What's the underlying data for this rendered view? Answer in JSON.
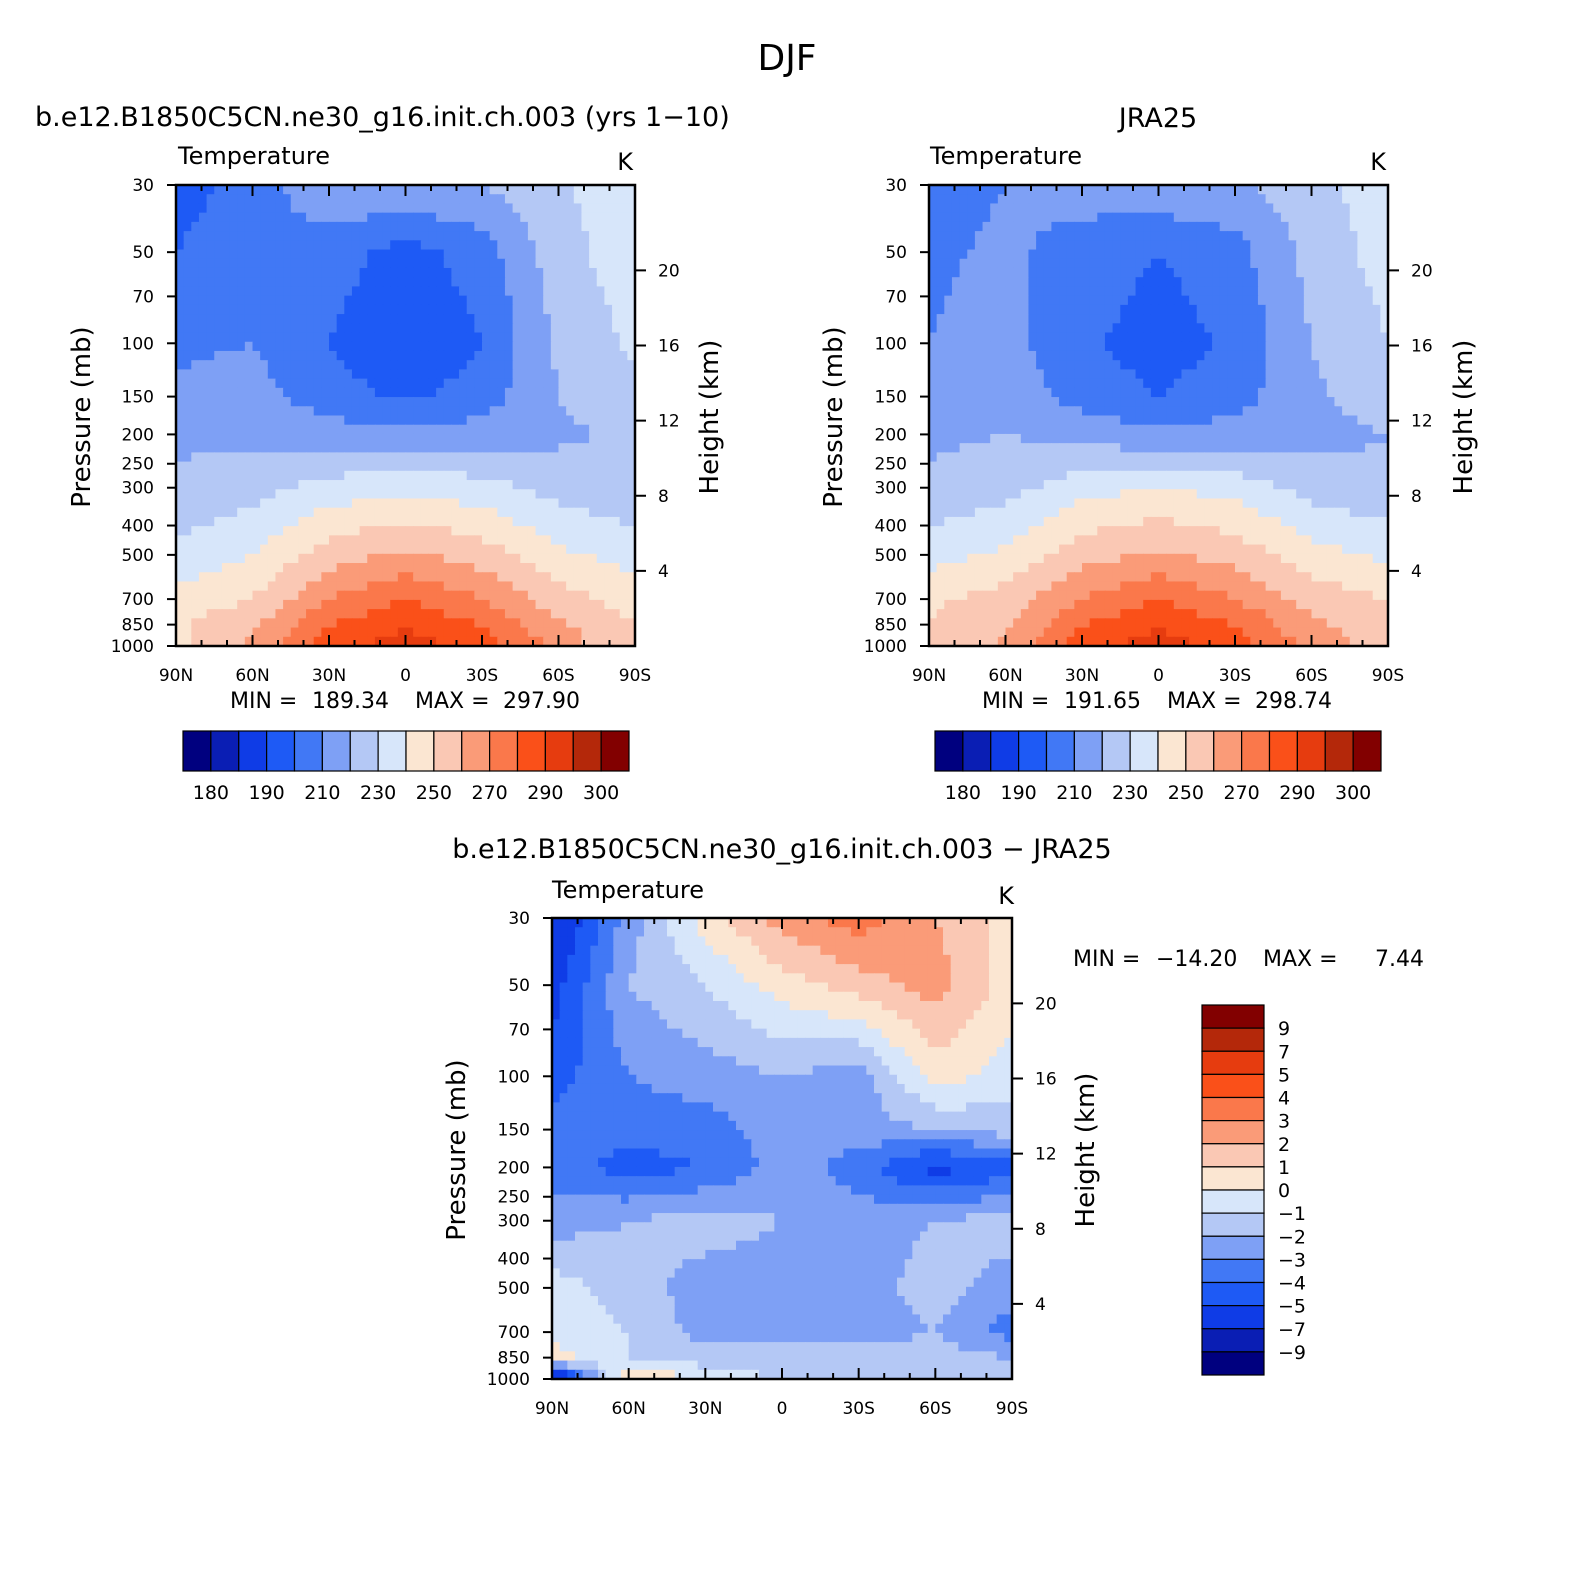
{
  "figure_title": "DJF",
  "colors": {
    "temperature_levels": [
      "#00007f",
      "#0a1eb4",
      "#0f3ce6",
      "#1e5af5",
      "#4178f5",
      "#7ea0f5",
      "#b4c8f5",
      "#d7e6fa",
      "#fbe6d2",
      "#fac8b4",
      "#fa9b78",
      "#fa784b",
      "#fa5019",
      "#e63c0f",
      "#b4280a",
      "#820000"
    ],
    "difference_levels": [
      "#00007f",
      "#0a1eb4",
      "#0f3ce6",
      "#1e5af5",
      "#4178f5",
      "#7ea0f5",
      "#b4c8f5",
      "#d7e6fa",
      "#fbe6d2",
      "#fac8b4",
      "#fa9b78",
      "#fa784b",
      "#fa5019",
      "#e63c0f",
      "#b4280a",
      "#820000"
    ]
  },
  "chart_data": [
    {
      "type": "heatmap",
      "title": "b.e12.B1850C5CN.ne30_g16.init.ch.003 (yrs 1−10)",
      "variable": "Temperature",
      "units": "K",
      "xlabel": "",
      "ylabel": "Pressure (mb)",
      "y2label": "Height (km)",
      "x_ticklabels": [
        "90N",
        "60N",
        "30N",
        "0",
        "30S",
        "60S",
        "90S"
      ],
      "x_range": [
        90,
        -90
      ],
      "y_ticklabels": [
        "30",
        "50",
        "70",
        "100",
        "150",
        "200",
        "250",
        "300",
        "400",
        "500",
        "700",
        "850",
        "1000"
      ],
      "y_range": [
        30,
        1000
      ],
      "y_scale": "log",
      "y2_ticklabels": [
        "4",
        "8",
        "12",
        "16",
        "20"
      ],
      "min_label": "MIN =",
      "min_value": "189.34",
      "max_label": "MAX =",
      "max_value": "297.90",
      "colorbar_ticks": [
        "180",
        "190",
        "210",
        "230",
        "250",
        "270",
        "290",
        "300"
      ],
      "colorbar_orientation": "horizontal",
      "lat_nodes": [
        90,
        60,
        30,
        0,
        -30,
        -60,
        -90
      ],
      "pressure_levels": [
        30,
        50,
        100,
        150,
        200,
        300,
        500,
        700,
        850,
        1000
      ],
      "values": [
        [
          195,
          205,
          218,
          220,
          220,
          228,
          238
        ],
        [
          200,
          208,
          205,
          196,
          205,
          226,
          236
        ],
        [
          208,
          210,
          200,
          190,
          200,
          222,
          232
        ],
        [
          212,
          214,
          205,
          198,
          205,
          220,
          228
        ],
        [
          218,
          218,
          214,
          212,
          214,
          218,
          222
        ],
        [
          222,
          226,
          234,
          238,
          234,
          226,
          222
        ],
        [
          232,
          240,
          255,
          262,
          255,
          242,
          236
        ],
        [
          244,
          250,
          270,
          280,
          270,
          254,
          246
        ],
        [
          248,
          258,
          280,
          288,
          280,
          262,
          250
        ],
        [
          248,
          262,
          286,
          296,
          286,
          266,
          250
        ]
      ]
    },
    {
      "type": "heatmap",
      "title": "JRA25",
      "variable": "Temperature",
      "units": "K",
      "xlabel": "",
      "ylabel": "Pressure (mb)",
      "y2label": "Height (km)",
      "x_ticklabels": [
        "90N",
        "60N",
        "30N",
        "0",
        "30S",
        "60S",
        "90S"
      ],
      "x_range": [
        90,
        -90
      ],
      "y_ticklabels": [
        "30",
        "50",
        "70",
        "100",
        "150",
        "200",
        "250",
        "300",
        "400",
        "500",
        "700",
        "850",
        "1000"
      ],
      "y_range": [
        30,
        1000
      ],
      "y_scale": "log",
      "y2_ticklabels": [
        "4",
        "8",
        "12",
        "16",
        "20"
      ],
      "min_label": "MIN =",
      "min_value": "191.65",
      "max_label": "MAX =",
      "max_value": "298.74",
      "colorbar_ticks": [
        "180",
        "190",
        "210",
        "230",
        "250",
        "270",
        "290",
        "300"
      ],
      "colorbar_orientation": "horizontal",
      "lat_nodes": [
        90,
        60,
        30,
        0,
        -30,
        -60,
        -90
      ],
      "pressure_levels": [
        30,
        50,
        100,
        150,
        200,
        300,
        500,
        700,
        850,
        1000
      ],
      "values": [
        [
          206,
          210,
          214,
          218,
          218,
          226,
          236
        ],
        [
          208,
          212,
          206,
          200,
          206,
          224,
          234
        ],
        [
          210,
          214,
          202,
          195,
          202,
          220,
          230
        ],
        [
          214,
          216,
          206,
          200,
          206,
          218,
          226
        ],
        [
          218,
          220,
          216,
          212,
          214,
          216,
          220
        ],
        [
          222,
          226,
          236,
          240,
          236,
          226,
          222
        ],
        [
          236,
          242,
          256,
          262,
          256,
          244,
          238
        ],
        [
          248,
          254,
          270,
          280,
          270,
          256,
          250
        ],
        [
          250,
          258,
          280,
          288,
          280,
          262,
          254
        ],
        [
          250,
          262,
          286,
          296,
          286,
          266,
          256
        ]
      ]
    },
    {
      "type": "heatmap",
      "title": "b.e12.B1850C5CN.ne30_g16.init.ch.003 − JRA25",
      "variable": "Temperature",
      "units": "K",
      "xlabel": "",
      "ylabel": "Pressure (mb)",
      "y2label": "Height (km)",
      "x_ticklabels": [
        "90N",
        "60N",
        "30N",
        "0",
        "30S",
        "60S",
        "90S"
      ],
      "x_range": [
        90,
        -90
      ],
      "y_ticklabels": [
        "30",
        "50",
        "70",
        "100",
        "150",
        "200",
        "250",
        "300",
        "400",
        "500",
        "700",
        "850",
        "1000"
      ],
      "y_range": [
        30,
        1000
      ],
      "y_scale": "log",
      "y2_ticklabels": [
        "4",
        "8",
        "12",
        "16",
        "20"
      ],
      "min_label": "MIN =",
      "min_value": "−14.20",
      "max_label": "MAX =",
      "max_value": "7.44",
      "colorbar_ticks": [
        "9",
        "7",
        "5",
        "4",
        "3",
        "2",
        "1",
        "0",
        "−1",
        "−2",
        "−3",
        "−4",
        "−5",
        "−7",
        "−9"
      ],
      "colorbar_orientation": "vertical",
      "lat_nodes": [
        90,
        60,
        30,
        0,
        -30,
        -60,
        -90
      ],
      "pressure_levels": [
        30,
        50,
        100,
        150,
        200,
        300,
        500,
        700,
        850,
        1000
      ],
      "values": [
        [
          -6.5,
          -2.5,
          0.5,
          2.5,
          3.5,
          2.0,
          0.5
        ],
        [
          -5.5,
          -2.0,
          -1.0,
          0.5,
          1.5,
          2.5,
          0.5
        ],
        [
          -4.5,
          -3.0,
          -2.5,
          -2.0,
          -2.5,
          0.5,
          -0.5
        ],
        [
          -3.5,
          -3.5,
          -3.5,
          -2.5,
          -2.5,
          -2.0,
          -1.5
        ],
        [
          -3.5,
          -4.5,
          -4.0,
          -2.5,
          -3.5,
          -5.5,
          -4.5
        ],
        [
          -2.5,
          -2.0,
          -1.5,
          -2.0,
          -2.5,
          -2.0,
          -1.5
        ],
        [
          -0.5,
          -1.5,
          -2.5,
          -2.5,
          -2.5,
          -1.5,
          -2.5
        ],
        [
          -0.5,
          -1.0,
          -2.5,
          -2.5,
          -2.5,
          -2.0,
          -3.5
        ],
        [
          0.5,
          -1.0,
          -1.5,
          -1.5,
          -1.5,
          -1.5,
          -2.0
        ],
        [
          -8.0,
          1.5,
          -0.5,
          -1.0,
          -1.0,
          -1.0,
          -1.5
        ]
      ]
    }
  ]
}
